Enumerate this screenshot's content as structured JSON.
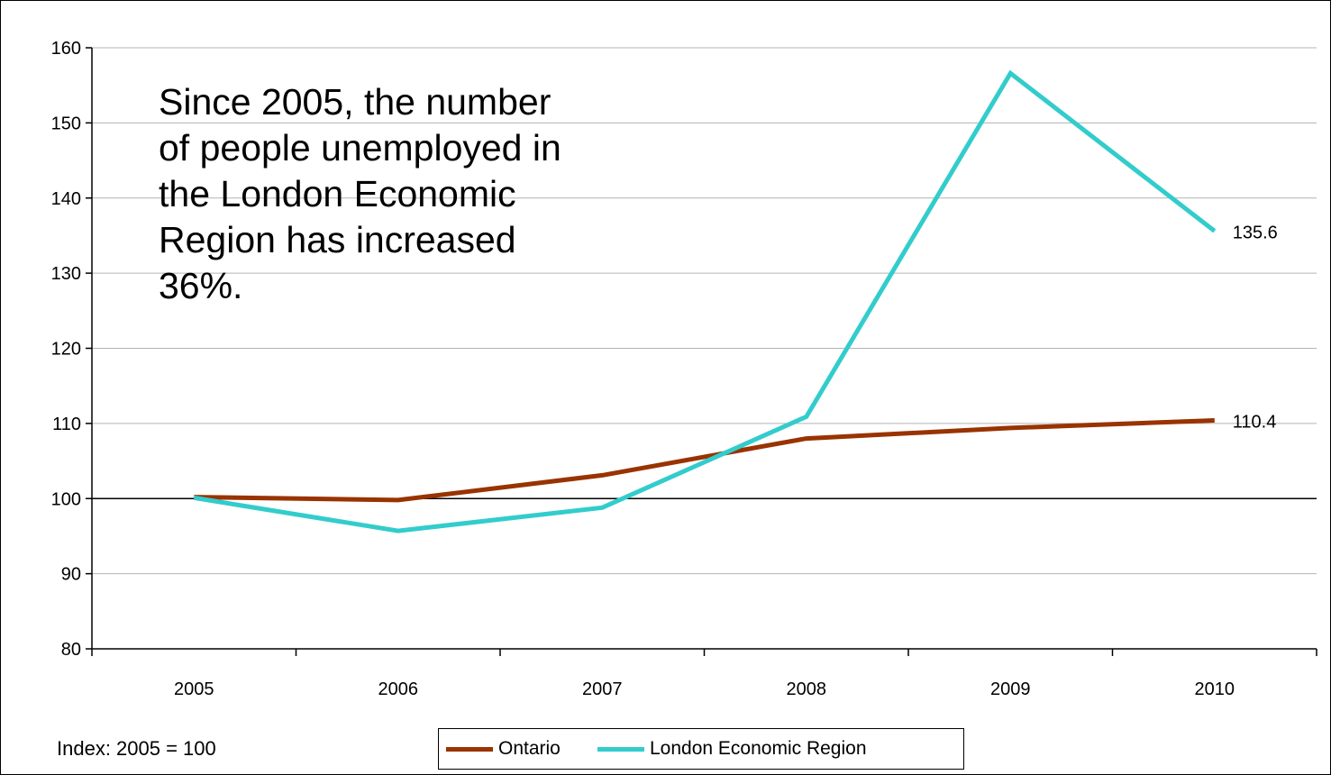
{
  "chart_data": {
    "type": "line",
    "x": [
      "2005",
      "2006",
      "2007",
      "2008",
      "2009",
      "2010"
    ],
    "ylim": [
      80,
      160
    ],
    "yticks": [
      80,
      90,
      100,
      110,
      120,
      130,
      140,
      150,
      160
    ],
    "grid": true,
    "reference_line": 100,
    "series": [
      {
        "name": "Ontario",
        "values": [
          100.2,
          99.8,
          103.1,
          108.0,
          109.4,
          110.4
        ],
        "color": "#993300",
        "end_label": "110.4"
      },
      {
        "name": "London Economic Region",
        "values": [
          100.1,
          95.7,
          98.8,
          110.9,
          156.6,
          135.6
        ],
        "color": "#33CCCC",
        "end_label": "135.6"
      }
    ],
    "annotation": "Since 2005, the number\nof people unemployed in\nthe London Economic\nRegion has increased\n36%.",
    "footnote": "Index: 2005 = 100",
    "legend_position": "bottom"
  }
}
